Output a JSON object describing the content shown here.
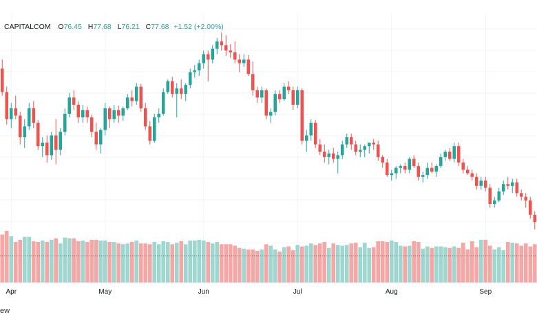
{
  "legend": {
    "symbol": "CAPITALCOM",
    "open_label": "O",
    "open": "76.45",
    "high_label": "H",
    "high": "77.68",
    "low_label": "L",
    "low": "76.21",
    "close_label": "C",
    "close": "77.68",
    "change": "+1.52 (+2.00%)"
  },
  "watermark": "ew",
  "colors": {
    "up": "#26a69a",
    "down": "#ef5350",
    "up_vol": "#9fd6cf",
    "down_vol": "#f4a7a5",
    "grid": "#f0f3fa"
  },
  "chart_data": {
    "type": "candlestick",
    "x_ticks": [
      "Apr",
      "May",
      "Jun",
      "Jul",
      "Aug",
      "Sep"
    ],
    "grid": true,
    "ohlc": [
      [
        78.6,
        79.6,
        75.6,
        76.0
      ],
      [
        76.0,
        76.6,
        72.4,
        73.0
      ],
      [
        73.0,
        74.8,
        72.0,
        74.2
      ],
      [
        74.2,
        75.6,
        73.0,
        73.4
      ],
      [
        73.4,
        73.8,
        70.2,
        71.0
      ],
      [
        71.0,
        73.0,
        69.8,
        72.2
      ],
      [
        72.2,
        74.8,
        71.8,
        74.2
      ],
      [
        74.2,
        75.0,
        72.0,
        72.6
      ],
      [
        72.6,
        72.9,
        69.6,
        70.0
      ],
      [
        70.0,
        71.0,
        68.8,
        70.4
      ],
      [
        70.4,
        71.2,
        68.2,
        69.0
      ],
      [
        69.0,
        71.6,
        68.5,
        71.2
      ],
      [
        71.2,
        73.0,
        68.0,
        69.6
      ],
      [
        69.6,
        72.0,
        69.0,
        71.6
      ],
      [
        71.6,
        74.2,
        71.2,
        73.6
      ],
      [
        73.6,
        75.9,
        73.2,
        75.4
      ],
      [
        75.4,
        76.2,
        74.0,
        74.6
      ],
      [
        74.6,
        75.0,
        72.6,
        73.2
      ],
      [
        73.2,
        74.6,
        72.6,
        74.0
      ],
      [
        74.0,
        74.4,
        72.6,
        73.2
      ],
      [
        73.2,
        73.5,
        71.0,
        71.6
      ],
      [
        71.6,
        72.6,
        69.6,
        70.2
      ],
      [
        70.2,
        72.0,
        69.2,
        71.8
      ],
      [
        71.8,
        74.8,
        71.2,
        74.2
      ],
      [
        74.2,
        74.4,
        72.0,
        73.0
      ],
      [
        73.0,
        74.6,
        72.6,
        74.0
      ],
      [
        74.0,
        74.5,
        72.6,
        73.4
      ],
      [
        73.4,
        74.4,
        72.8,
        74.2
      ],
      [
        74.2,
        75.8,
        74.0,
        75.4
      ],
      [
        75.4,
        76.2,
        74.4,
        75.0
      ],
      [
        75.0,
        77.0,
        74.6,
        76.6
      ],
      [
        76.6,
        76.9,
        73.8,
        74.2
      ],
      [
        74.2,
        74.8,
        71.8,
        72.2
      ],
      [
        72.2,
        72.8,
        70.2,
        70.6
      ],
      [
        70.6,
        73.6,
        70.4,
        73.2
      ],
      [
        73.2,
        74.2,
        72.6,
        73.6
      ],
      [
        73.6,
        76.4,
        73.4,
        76.0
      ],
      [
        76.0,
        77.4,
        75.8,
        77.2
      ],
      [
        77.2,
        77.7,
        75.4,
        75.8
      ],
      [
        75.8,
        77.0,
        73.2,
        76.4
      ],
      [
        76.4,
        77.4,
        75.2,
        75.8
      ],
      [
        75.8,
        77.0,
        75.0,
        76.8
      ],
      [
        76.8,
        78.6,
        76.4,
        78.2
      ],
      [
        78.2,
        79.0,
        77.6,
        78.4
      ],
      [
        78.4,
        79.6,
        77.8,
        79.2
      ],
      [
        79.2,
        80.6,
        78.6,
        80.2
      ],
      [
        80.2,
        80.6,
        77.2,
        79.6
      ],
      [
        79.6,
        81.2,
        79.2,
        80.8
      ],
      [
        80.8,
        82.0,
        80.2,
        81.6
      ],
      [
        81.6,
        82.6,
        80.6,
        81.2
      ],
      [
        81.2,
        82.3,
        80.0,
        80.6
      ],
      [
        80.6,
        81.3,
        79.8,
        80.4
      ],
      [
        80.4,
        81.6,
        79.2,
        79.6
      ],
      [
        79.6,
        80.2,
        78.2,
        79.2
      ],
      [
        79.2,
        80.2,
        78.8,
        79.6
      ],
      [
        79.6,
        80.1,
        77.8,
        78.0
      ],
      [
        78.0,
        79.4,
        75.6,
        76.2
      ],
      [
        76.2,
        76.6,
        74.8,
        75.4
      ],
      [
        75.4,
        76.6,
        74.8,
        76.2
      ],
      [
        76.2,
        76.4,
        73.0,
        73.4
      ],
      [
        73.4,
        74.2,
        72.6,
        73.8
      ],
      [
        73.8,
        76.2,
        73.4,
        75.8
      ],
      [
        75.8,
        76.2,
        74.8,
        75.2
      ],
      [
        75.2,
        77.0,
        75.0,
        76.6
      ],
      [
        76.6,
        77.2,
        75.8,
        76.2
      ],
      [
        76.2,
        76.6,
        74.0,
        74.6
      ],
      [
        74.6,
        76.6,
        74.2,
        76.2
      ],
      [
        76.2,
        76.4,
        70.2,
        70.6
      ],
      [
        70.6,
        71.8,
        69.4,
        71.2
      ],
      [
        71.2,
        73.0,
        70.6,
        72.6
      ],
      [
        72.6,
        72.9,
        69.8,
        70.2
      ],
      [
        70.2,
        70.8,
        69.0,
        69.4
      ],
      [
        69.4,
        70.2,
        68.2,
        68.8
      ],
      [
        68.8,
        69.6,
        68.0,
        69.2
      ],
      [
        69.2,
        69.8,
        68.2,
        68.6
      ],
      [
        68.6,
        69.4,
        67.0,
        69.0
      ],
      [
        69.0,
        70.6,
        68.6,
        70.2
      ],
      [
        70.2,
        71.4,
        69.8,
        71.0
      ],
      [
        71.0,
        71.4,
        69.6,
        70.2
      ],
      [
        70.2,
        70.6,
        69.0,
        69.4
      ],
      [
        69.4,
        70.2,
        68.8,
        69.6
      ],
      [
        69.6,
        70.2,
        68.8,
        70.0
      ],
      [
        70.0,
        70.4,
        69.2,
        70.4
      ],
      [
        70.4,
        70.8,
        69.6,
        70.2
      ],
      [
        70.2,
        70.6,
        68.4,
        68.8
      ],
      [
        68.8,
        69.0,
        67.6,
        68.2
      ],
      [
        68.2,
        68.6,
        66.6,
        66.8
      ],
      [
        66.8,
        67.4,
        66.2,
        67.0
      ],
      [
        67.0,
        67.8,
        66.4,
        67.6
      ],
      [
        67.6,
        68.0,
        67.0,
        67.8
      ],
      [
        67.8,
        68.2,
        67.0,
        67.4
      ],
      [
        67.4,
        68.8,
        67.0,
        68.6
      ],
      [
        68.6,
        69.0,
        67.6,
        67.8
      ],
      [
        67.8,
        68.2,
        66.2,
        66.6
      ],
      [
        66.6,
        67.2,
        66.0,
        66.8
      ],
      [
        66.8,
        68.2,
        66.4,
        67.6
      ],
      [
        67.6,
        68.2,
        67.0,
        67.2
      ],
      [
        67.2,
        68.0,
        66.6,
        67.8
      ],
      [
        67.8,
        69.2,
        67.6,
        68.8
      ],
      [
        68.8,
        69.6,
        68.4,
        69.4
      ],
      [
        69.4,
        69.8,
        68.4,
        68.6
      ],
      [
        68.6,
        70.4,
        68.2,
        70.0
      ],
      [
        70.0,
        70.4,
        67.8,
        68.2
      ],
      [
        68.2,
        68.6,
        67.0,
        67.4
      ],
      [
        67.4,
        67.8,
        66.8,
        67.0
      ],
      [
        67.0,
        67.4,
        66.2,
        66.6
      ],
      [
        66.6,
        67.0,
        65.2,
        65.6
      ],
      [
        65.6,
        66.6,
        65.2,
        66.2
      ],
      [
        66.2,
        66.6,
        65.0,
        65.4
      ],
      [
        65.4,
        65.8,
        63.2,
        63.6
      ],
      [
        63.6,
        64.4,
        63.2,
        64.0
      ],
      [
        64.0,
        65.4,
        63.8,
        65.0
      ],
      [
        65.0,
        66.2,
        64.6,
        65.8
      ],
      [
        65.8,
        66.6,
        65.2,
        65.6
      ],
      [
        65.6,
        66.4,
        64.8,
        66.0
      ],
      [
        66.0,
        66.4,
        64.4,
        64.8
      ],
      [
        64.8,
        65.2,
        64.0,
        64.4
      ],
      [
        64.4,
        64.8,
        63.2,
        64.0
      ],
      [
        64.0,
        64.4,
        62.0,
        62.4
      ],
      [
        62.4,
        62.8,
        60.8,
        61.6
      ]
    ],
    "volume": [
      65,
      70,
      63,
      55,
      58,
      62,
      62,
      56,
      55,
      57,
      55,
      58,
      60,
      53,
      61,
      60,
      60,
      56,
      57,
      55,
      58,
      58,
      57,
      57,
      55,
      55,
      53,
      52,
      53,
      55,
      57,
      53,
      53,
      52,
      55,
      52,
      56,
      55,
      52,
      54,
      56,
      52,
      57,
      57,
      58,
      57,
      55,
      53,
      55,
      52,
      52,
      52,
      50,
      47,
      46,
      45,
      45,
      43,
      45,
      52,
      50,
      45,
      42,
      48,
      49,
      44,
      51,
      49,
      50,
      53,
      51,
      53,
      55,
      47,
      53,
      51,
      50,
      51,
      53,
      54,
      48,
      54,
      47,
      48,
      56,
      56,
      55,
      57,
      55,
      50,
      49,
      50,
      56,
      55,
      46,
      49,
      47,
      49,
      49,
      48,
      47,
      49,
      47,
      54,
      45,
      56,
      48,
      58,
      58,
      50,
      45,
      48,
      44,
      55,
      54,
      53,
      50,
      53,
      49,
      52
    ]
  }
}
